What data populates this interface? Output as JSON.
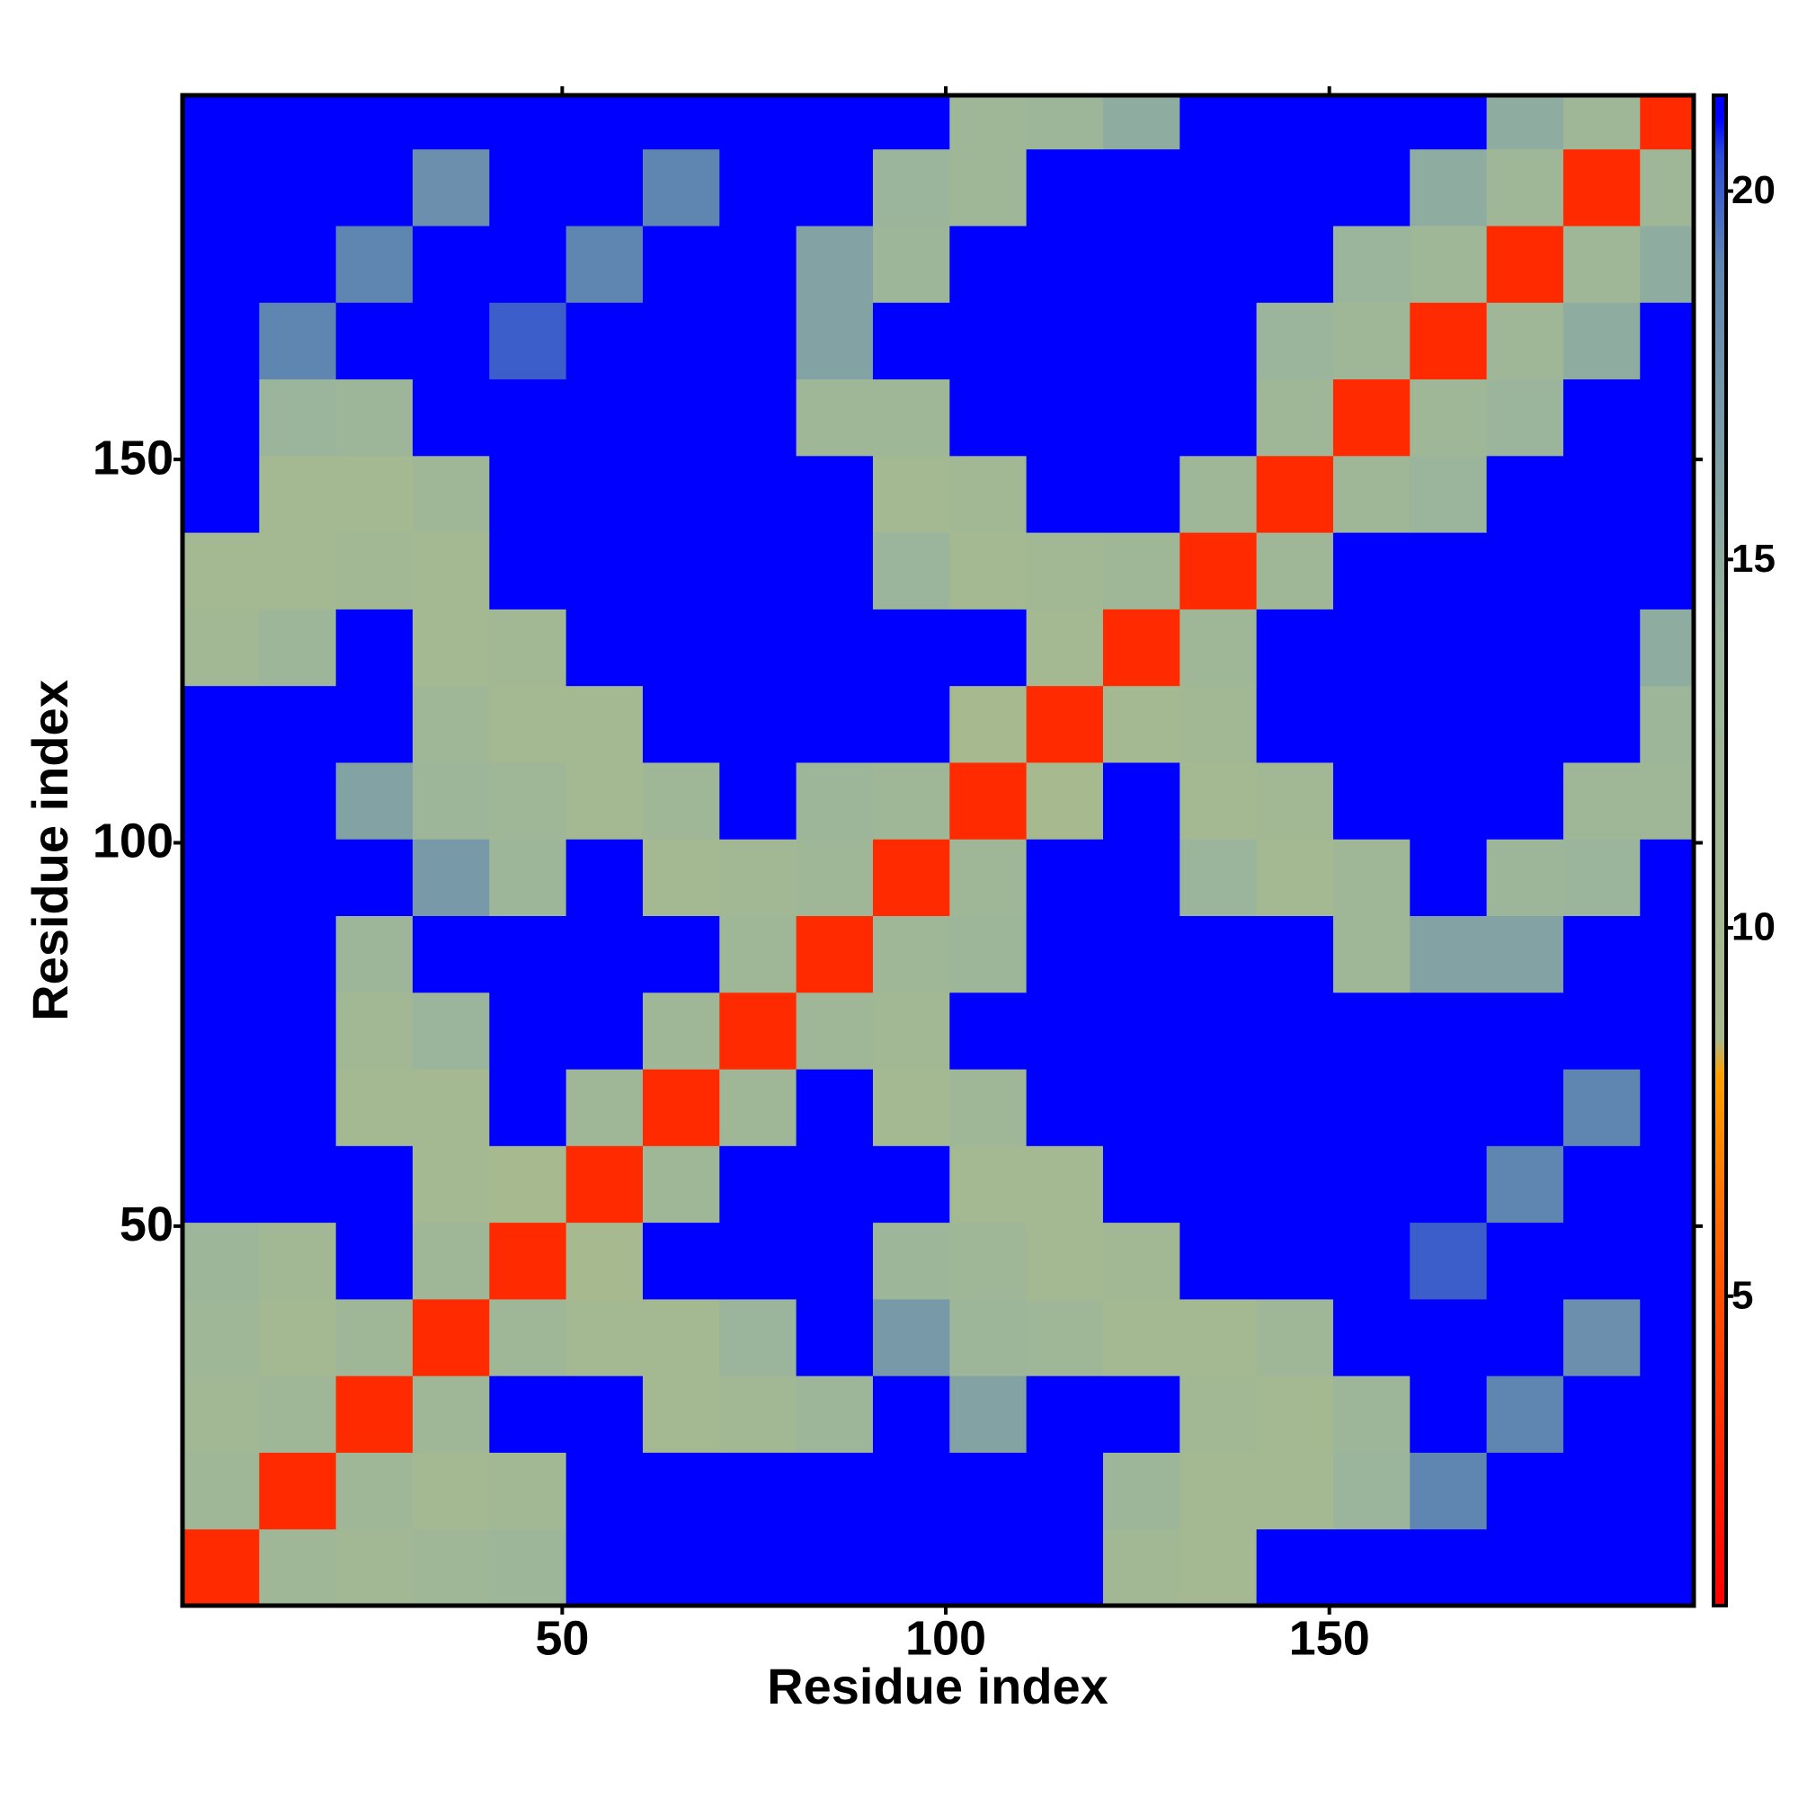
{
  "chart_data": {
    "type": "heatmap",
    "x_label": "Residue index",
    "y_label": "Residue index",
    "bins": [
      0.5,
      10.5,
      20.5,
      30.5,
      40.5,
      50.5,
      60.5,
      70.5,
      80.5,
      90.5,
      100.5,
      110.5,
      120.5,
      130.5,
      140.5,
      150.5,
      160.5,
      170.5,
      180.5,
      190.5,
      197.5
    ],
    "xlim": [
      0.5,
      197.5
    ],
    "ylim": [
      0.5,
      197.5
    ],
    "xticks": [
      50,
      100,
      150
    ],
    "yticks": [
      50,
      100,
      150
    ],
    "zlim": [
      0.8,
      21.3
    ],
    "zticks": [
      5,
      10,
      15,
      20
    ],
    "colorscale": [
      [
        0.8,
        "#ff0000"
      ],
      [
        5,
        "#ff5000"
      ],
      [
        8,
        "#ffa000"
      ],
      [
        8.5,
        "#a8ba8e"
      ],
      [
        14,
        "#9bb59c"
      ],
      [
        19,
        "#5f86b0"
      ],
      [
        20.5,
        "#2a4ad8"
      ],
      [
        21,
        "#0000ff"
      ],
      [
        21.3,
        "#0000ff"
      ]
    ],
    "values": [
      [
        3,
        12,
        11,
        12,
        13,
        21,
        21,
        21,
        21,
        21,
        21,
        21,
        11,
        10,
        21,
        21,
        21,
        21,
        21,
        21
      ],
      [
        12,
        3,
        12,
        10,
        11,
        21,
        21,
        21,
        21,
        21,
        21,
        21,
        13,
        10,
        10,
        14,
        19,
        21,
        21,
        21
      ],
      [
        11,
        12,
        3,
        12,
        21,
        21,
        10,
        11,
        13,
        21,
        16,
        21,
        21,
        11,
        10,
        13,
        21,
        19,
        21,
        21
      ],
      [
        12,
        10,
        12,
        3,
        12,
        10,
        10,
        14,
        21,
        17,
        13,
        12,
        10,
        10,
        12,
        21,
        21,
        21,
        18,
        21
      ],
      [
        13,
        11,
        21,
        12,
        3,
        9,
        21,
        21,
        21,
        13,
        12,
        10,
        11,
        21,
        21,
        21,
        20,
        21,
        21,
        21
      ],
      [
        21,
        21,
        21,
        10,
        9,
        3,
        12,
        21,
        21,
        21,
        10,
        10,
        21,
        21,
        21,
        21,
        21,
        19,
        21,
        21
      ],
      [
        21,
        21,
        10,
        10,
        21,
        12,
        3,
        12,
        21,
        10,
        12,
        21,
        21,
        21,
        21,
        21,
        21,
        21,
        19,
        21
      ],
      [
        21,
        21,
        11,
        14,
        21,
        21,
        12,
        3,
        12,
        11,
        21,
        21,
        21,
        21,
        21,
        21,
        21,
        21,
        21,
        21
      ],
      [
        21,
        21,
        13,
        21,
        21,
        21,
        21,
        12,
        3,
        12,
        13,
        21,
        21,
        21,
        21,
        12,
        16,
        16,
        21,
        21
      ],
      [
        21,
        21,
        21,
        17,
        13,
        21,
        10,
        11,
        12,
        3,
        12,
        21,
        21,
        14,
        10,
        12,
        21,
        13,
        14,
        21
      ],
      [
        21,
        21,
        16,
        13,
        12,
        10,
        12,
        21,
        13,
        12,
        3,
        9,
        21,
        10,
        11,
        21,
        21,
        21,
        12,
        12
      ],
      [
        21,
        21,
        21,
        12,
        10,
        10,
        21,
        21,
        21,
        21,
        9,
        3,
        10,
        11,
        21,
        21,
        21,
        21,
        21,
        13
      ],
      [
        11,
        13,
        21,
        10,
        11,
        21,
        21,
        21,
        21,
        21,
        21,
        10,
        3,
        12,
        21,
        21,
        21,
        21,
        21,
        15
      ],
      [
        10,
        10,
        11,
        10,
        21,
        21,
        21,
        21,
        21,
        14,
        10,
        11,
        12,
        3,
        12,
        21,
        21,
        21,
        21,
        21
      ],
      [
        21,
        10,
        10,
        12,
        21,
        21,
        21,
        21,
        21,
        10,
        11,
        21,
        21,
        12,
        3,
        12,
        14,
        21,
        21,
        21
      ],
      [
        21,
        14,
        13,
        21,
        21,
        21,
        21,
        21,
        12,
        12,
        21,
        21,
        21,
        21,
        12,
        3,
        12,
        14,
        21,
        21
      ],
      [
        21,
        19,
        21,
        21,
        20,
        21,
        21,
        21,
        16,
        21,
        21,
        21,
        21,
        21,
        14,
        12,
        3,
        12,
        15,
        21
      ],
      [
        21,
        21,
        19,
        21,
        21,
        19,
        21,
        21,
        16,
        13,
        21,
        21,
        21,
        21,
        21,
        14,
        12,
        3,
        12,
        15
      ],
      [
        21,
        21,
        21,
        18,
        21,
        21,
        19,
        21,
        21,
        14,
        12,
        21,
        21,
        21,
        21,
        21,
        15,
        12,
        3,
        12
      ],
      [
        21,
        21,
        21,
        21,
        21,
        21,
        21,
        21,
        21,
        21,
        12,
        13,
        15,
        21,
        21,
        21,
        21,
        15,
        12,
        3
      ]
    ]
  }
}
